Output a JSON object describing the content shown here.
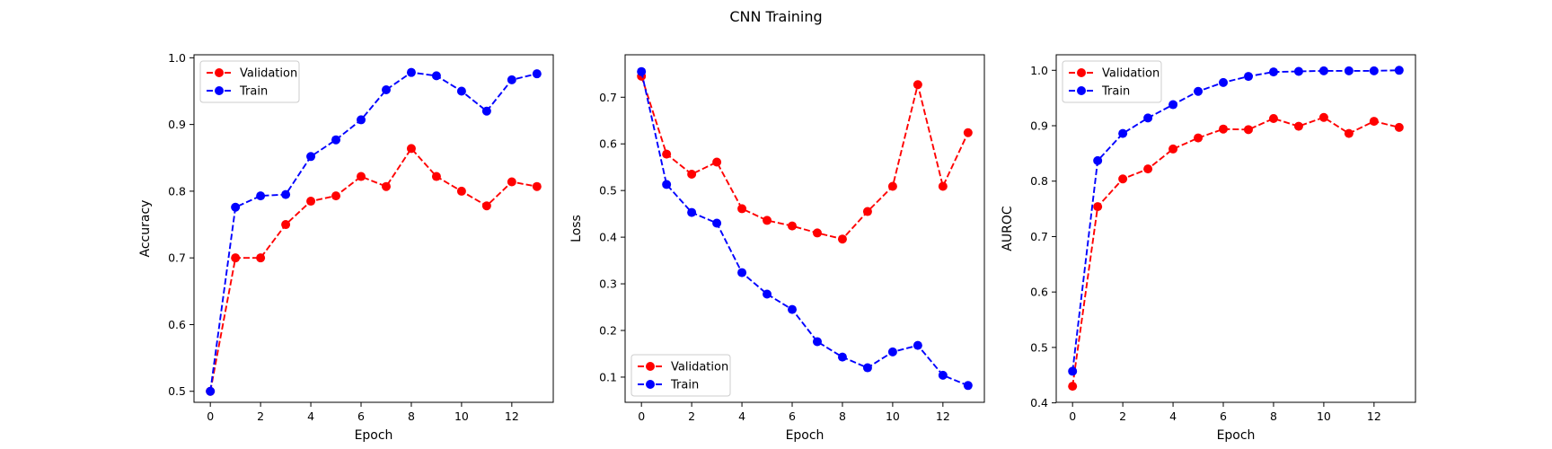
{
  "figure": {
    "title": "CNN Training"
  },
  "chart_data": [
    {
      "type": "line",
      "title": "",
      "xlabel": "Epoch",
      "ylabel": "Accuracy",
      "xlim": [
        -0.65,
        13.65
      ],
      "ylim": [
        0.4835,
        1.0045
      ],
      "xticks": [
        0,
        2,
        4,
        6,
        8,
        10,
        12
      ],
      "yticks": [
        0.5,
        0.6,
        0.7,
        0.8,
        0.9,
        1.0
      ],
      "ytick_labels": [
        "0.5",
        "0.6",
        "0.7",
        "0.8",
        "0.9",
        "1.0"
      ],
      "legend_loc": "upper-left",
      "x": [
        0,
        1,
        2,
        3,
        4,
        5,
        6,
        7,
        8,
        9,
        10,
        11,
        12,
        13
      ],
      "series": [
        {
          "name": "Validation",
          "color": "#ff0000",
          "values": [
            0.5,
            0.7,
            0.7,
            0.75,
            0.785,
            0.793,
            0.822,
            0.807,
            0.864,
            0.822,
            0.8,
            0.778,
            0.814,
            0.807
          ]
        },
        {
          "name": "Train",
          "color": "#0000ff",
          "values": [
            0.5,
            0.776,
            0.793,
            0.795,
            0.852,
            0.877,
            0.907,
            0.952,
            0.978,
            0.973,
            0.95,
            0.92,
            0.967,
            0.976
          ]
        }
      ]
    },
    {
      "type": "line",
      "title": "",
      "xlabel": "Epoch",
      "ylabel": "Loss",
      "xlim": [
        -0.65,
        13.65
      ],
      "ylim": [
        0.046,
        0.791
      ],
      "xticks": [
        0,
        2,
        4,
        6,
        8,
        10,
        12
      ],
      "yticks": [
        0.1,
        0.2,
        0.3,
        0.4,
        0.5,
        0.6,
        0.7
      ],
      "ytick_labels": [
        "0.1",
        "0.2",
        "0.3",
        "0.4",
        "0.5",
        "0.6",
        "0.7"
      ],
      "legend_loc": "lower-left",
      "x": [
        0,
        1,
        2,
        3,
        4,
        5,
        6,
        7,
        8,
        9,
        10,
        11,
        12,
        13
      ],
      "series": [
        {
          "name": "Validation",
          "color": "#ff0000",
          "values": [
            0.745,
            0.578,
            0.535,
            0.561,
            0.461,
            0.436,
            0.424,
            0.409,
            0.396,
            0.455,
            0.509,
            0.727,
            0.509,
            0.624
          ]
        },
        {
          "name": "Train",
          "color": "#0000ff",
          "values": [
            0.755,
            0.513,
            0.453,
            0.43,
            0.324,
            0.278,
            0.245,
            0.176,
            0.143,
            0.12,
            0.154,
            0.168,
            0.104,
            0.082
          ]
        }
      ]
    },
    {
      "type": "line",
      "title": "",
      "xlabel": "Epoch",
      "ylabel": "AUROC",
      "xlim": [
        -0.65,
        13.65
      ],
      "ylim": [
        0.401,
        1.028
      ],
      "xticks": [
        0,
        2,
        4,
        6,
        8,
        10,
        12
      ],
      "yticks": [
        0.4,
        0.5,
        0.6,
        0.7,
        0.8,
        0.9,
        1.0
      ],
      "ytick_labels": [
        "0.4",
        "0.5",
        "0.6",
        "0.7",
        "0.8",
        "0.9",
        "1.0"
      ],
      "legend_loc": "upper-left",
      "x": [
        0,
        1,
        2,
        3,
        4,
        5,
        6,
        7,
        8,
        9,
        10,
        11,
        12,
        13
      ],
      "series": [
        {
          "name": "Validation",
          "color": "#ff0000",
          "values": [
            0.43,
            0.754,
            0.804,
            0.822,
            0.858,
            0.878,
            0.894,
            0.893,
            0.913,
            0.899,
            0.915,
            0.886,
            0.908,
            0.897
          ]
        },
        {
          "name": "Train",
          "color": "#0000ff",
          "values": [
            0.457,
            0.837,
            0.886,
            0.914,
            0.938,
            0.962,
            0.978,
            0.989,
            0.997,
            0.998,
            0.999,
            0.999,
            0.999,
            1.0
          ]
        }
      ]
    }
  ]
}
